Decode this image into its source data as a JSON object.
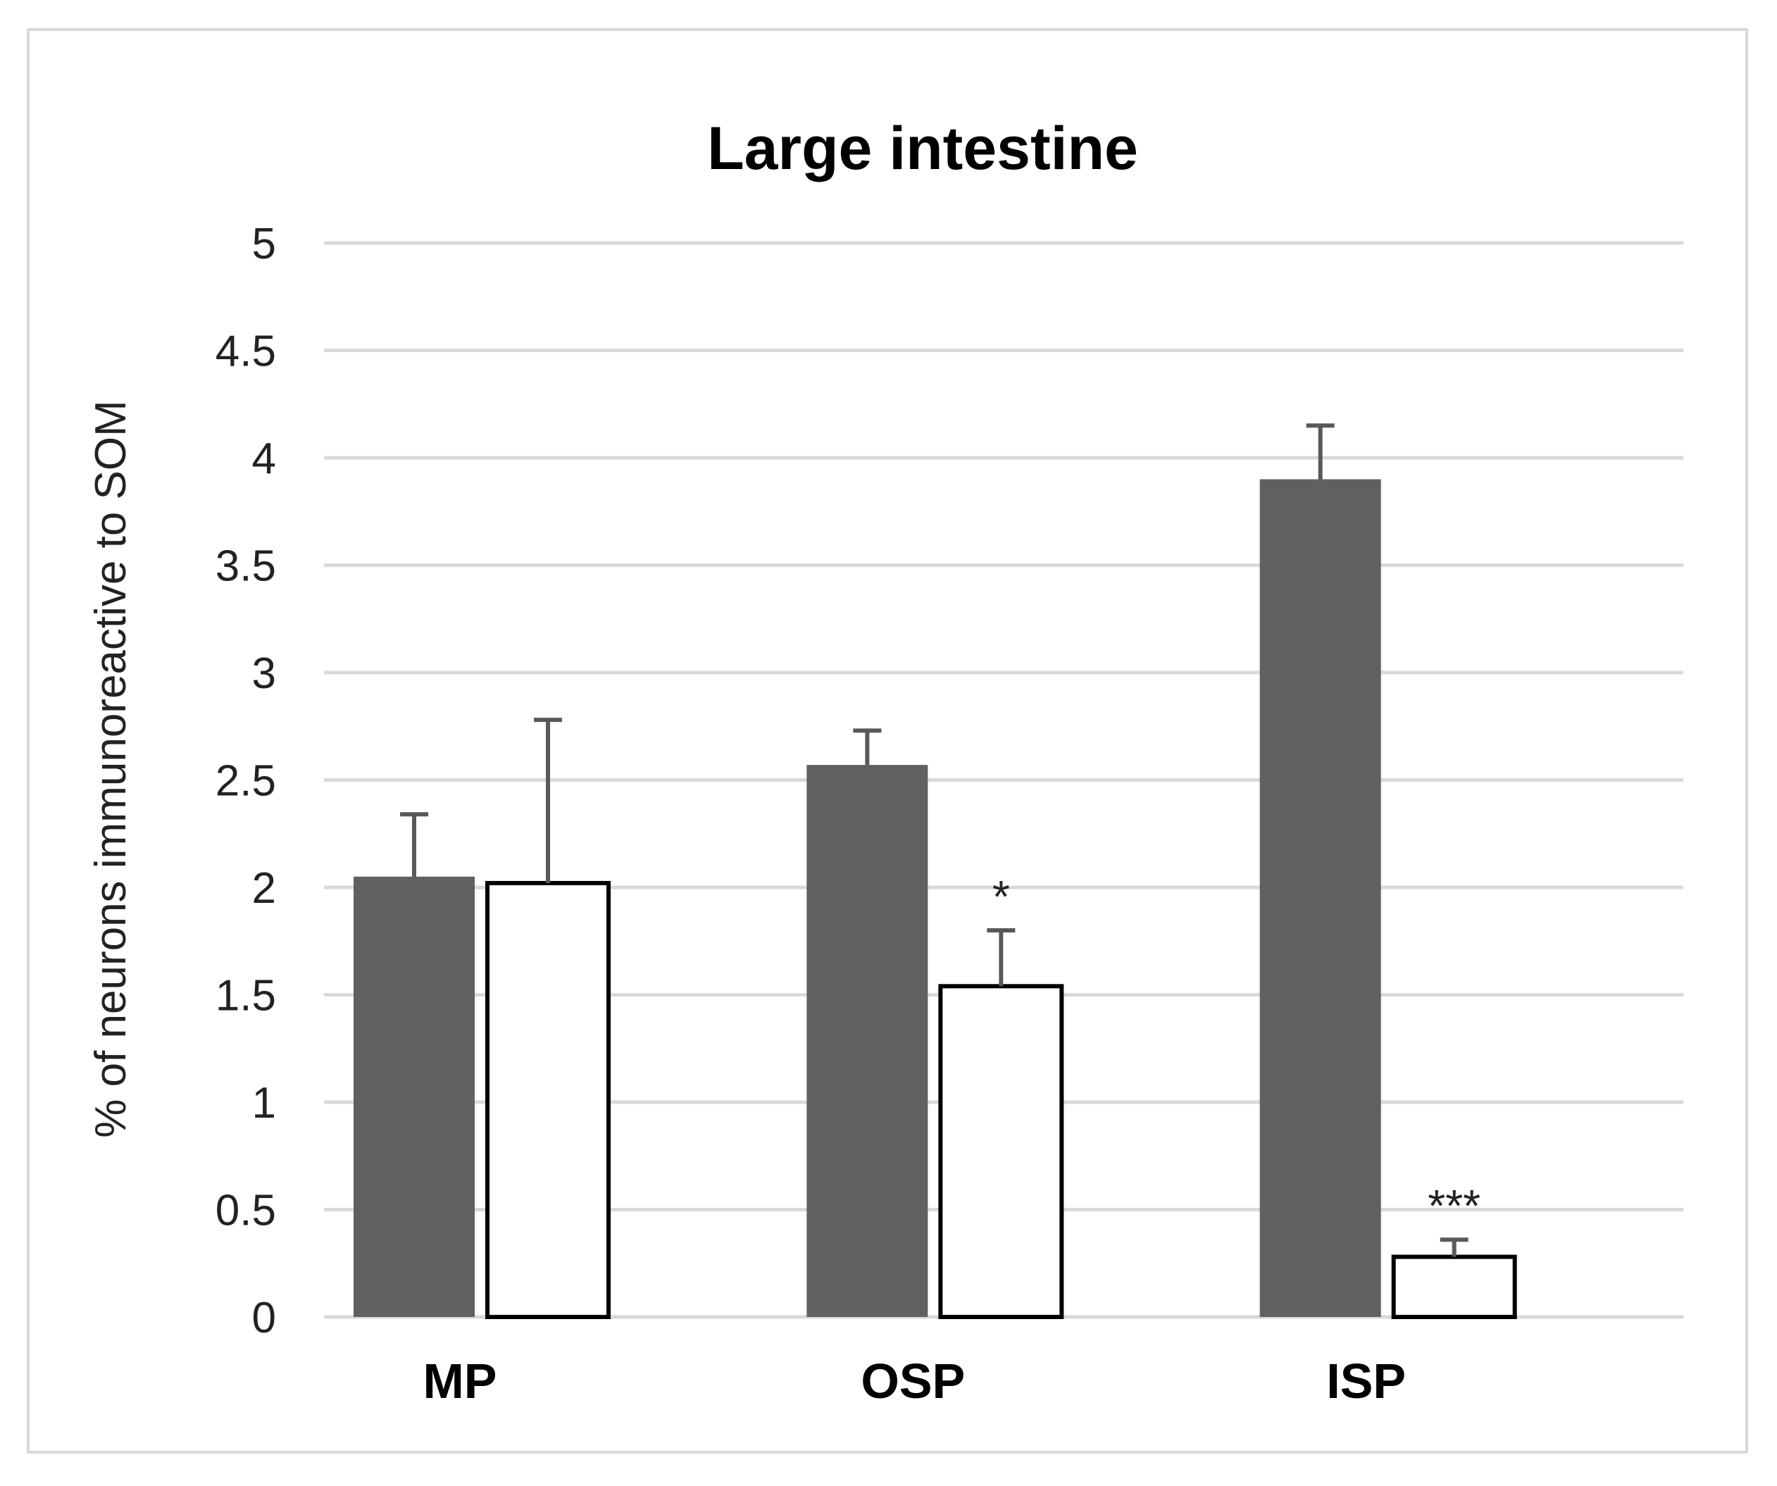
{
  "chart_data": {
    "type": "bar",
    "title": "Large intestine",
    "xlabel": "",
    "ylabel": "% of neurons immunoreactive to SOM",
    "ylim": [
      0,
      5
    ],
    "yticks": [
      0,
      0.5,
      1,
      1.5,
      2,
      2.5,
      3,
      3.5,
      4,
      4.5,
      5
    ],
    "ytick_labels": [
      "0",
      "0.5",
      "1",
      "1.5",
      "2",
      "2.5",
      "3",
      "3.5",
      "4",
      "4.5",
      "5"
    ],
    "grid": true,
    "legend": "none",
    "categories": [
      "MP",
      "OSP",
      "ISP"
    ],
    "series": [
      {
        "name": "series-1",
        "color": "#606060",
        "values": [
          2.05,
          2.57,
          3.9
        ],
        "errors": [
          0.29,
          0.16,
          0.25
        ],
        "annotations": [
          "",
          "",
          ""
        ]
      },
      {
        "name": "series-2",
        "color": "#ffffff",
        "edge_color": "#000000",
        "values": [
          2.02,
          1.54,
          0.28
        ],
        "errors": [
          0.76,
          0.26,
          0.08
        ],
        "annotations": [
          "",
          "*",
          "***"
        ]
      }
    ],
    "error_bar_color": "#595959",
    "grid_color": "#d9d9d9"
  }
}
